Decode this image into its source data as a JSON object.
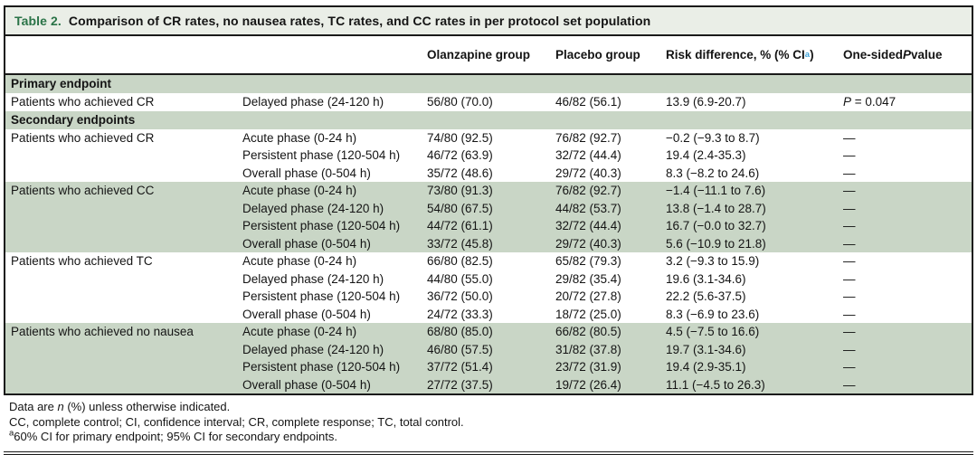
{
  "colors": {
    "band_green": "#c9d6c6",
    "caption_bg": "#eaeee7",
    "caption_label_green": "#2a7347",
    "superscript_blue": "#3fa3d9"
  },
  "caption": {
    "label": "Table 2.",
    "text": "Comparison of CR rates, no nausea rates, TC rates, and CC rates in per protocol set population"
  },
  "columns": {
    "olanzapine": "Olanzapine group",
    "placebo": "Placebo group",
    "risk": [
      {
        "t": "Risk difference, % (% CI"
      },
      {
        "t": "a",
        "sup": true,
        "blue": true
      },
      {
        "t": ")"
      }
    ],
    "pvalue": [
      {
        "t": "One-sided "
      },
      {
        "t": "P",
        "i": true
      },
      {
        "t": " value"
      }
    ]
  },
  "sections": [
    {
      "type": "band",
      "label": "Primary endpoint"
    },
    {
      "type": "group",
      "endpoint": "Patients who achieved CR",
      "shaded": false,
      "rows": [
        {
          "phase": "Delayed phase (24-120 h)",
          "olanzapine": "56/80 (70.0)",
          "placebo": "46/82 (56.1)",
          "risk": "13.9 (6.9-20.7)",
          "p": [
            {
              "t": "P",
              "i": true
            },
            {
              "t": " = 0.047"
            }
          ]
        }
      ]
    },
    {
      "type": "band",
      "label": "Secondary endpoints"
    },
    {
      "type": "group",
      "endpoint": "Patients who achieved CR",
      "shaded": false,
      "rows": [
        {
          "phase": "Acute phase (0-24 h)",
          "olanzapine": "74/80 (92.5)",
          "placebo": "76/82 (92.7)",
          "risk": "−0.2 (−9.3 to 8.7)",
          "p": "—"
        },
        {
          "phase": "Persistent phase (120-504 h)",
          "olanzapine": "46/72 (63.9)",
          "placebo": "32/72 (44.4)",
          "risk": "19.4 (2.4-35.3)",
          "p": "—"
        },
        {
          "phase": "Overall phase (0-504 h)",
          "olanzapine": "35/72 (48.6)",
          "placebo": "29/72 (40.3)",
          "risk": "8.3 (−8.2 to 24.6)",
          "p": "—"
        }
      ]
    },
    {
      "type": "group",
      "endpoint": "Patients who achieved CC",
      "shaded": true,
      "rows": [
        {
          "phase": "Acute phase (0-24 h)",
          "olanzapine": "73/80 (91.3)",
          "placebo": "76/82 (92.7)",
          "risk": "−1.4 (−11.1 to 7.6)",
          "p": "—"
        },
        {
          "phase": "Delayed phase (24-120 h)",
          "olanzapine": "54/80 (67.5)",
          "placebo": "44/82 (53.7)",
          "risk": "13.8 (−1.4 to 28.7)",
          "p": "—"
        },
        {
          "phase": "Persistent phase (120-504 h)",
          "olanzapine": "44/72 (61.1)",
          "placebo": "32/72 (44.4)",
          "risk": "16.7 (−0.0 to 32.7)",
          "p": "—"
        },
        {
          "phase": "Overall phase (0-504 h)",
          "olanzapine": "33/72 (45.8)",
          "placebo": "29/72 (40.3)",
          "risk": "5.6 (−10.9 to 21.8)",
          "p": "—"
        }
      ]
    },
    {
      "type": "group",
      "endpoint": "Patients who achieved TC",
      "shaded": false,
      "rows": [
        {
          "phase": "Acute phase (0-24 h)",
          "olanzapine": "66/80 (82.5)",
          "placebo": "65/82 (79.3)",
          "risk": "3.2 (−9.3 to 15.9)",
          "p": "—"
        },
        {
          "phase": "Delayed phase (24-120 h)",
          "olanzapine": "44/80 (55.0)",
          "placebo": "29/82 (35.4)",
          "risk": "19.6 (3.1-34.6)",
          "p": "—"
        },
        {
          "phase": "Persistent phase (120-504 h)",
          "olanzapine": "36/72 (50.0)",
          "placebo": "20/72 (27.8)",
          "risk": "22.2 (5.6-37.5)",
          "p": "—"
        },
        {
          "phase": "Overall phase (0-504 h)",
          "olanzapine": "24/72 (33.3)",
          "placebo": "18/72 (25.0)",
          "risk": "8.3 (−6.9 to 23.6)",
          "p": "—"
        }
      ]
    },
    {
      "type": "group",
      "endpoint": "Patients who achieved no nausea",
      "shaded": true,
      "rows": [
        {
          "phase": "Acute phase (0-24 h)",
          "olanzapine": "68/80 (85.0)",
          "placebo": "66/82 (80.5)",
          "risk": "4.5 (−7.5 to 16.6)",
          "p": "—"
        },
        {
          "phase": "Delayed phase (24-120 h)",
          "olanzapine": "46/80 (57.5)",
          "placebo": "31/82 (37.8)",
          "risk": "19.7 (3.1-34.6)",
          "p": "—"
        },
        {
          "phase": "Persistent phase (120-504 h)",
          "olanzapine": "37/72 (51.4)",
          "placebo": "23/72 (31.9)",
          "risk": "19.4 (2.9-35.1)",
          "p": "—"
        },
        {
          "phase": "Overall phase (0-504 h)",
          "olanzapine": "27/72 (37.5)",
          "placebo": "19/72 (26.4)",
          "risk": "11.1 (−4.5 to 26.3)",
          "p": "—"
        }
      ]
    }
  ],
  "footnotes": [
    [
      {
        "t": "Data are "
      },
      {
        "t": "n",
        "i": true
      },
      {
        "t": " (%) unless otherwise indicated."
      }
    ],
    [
      {
        "t": "CC, complete control; CI, confidence interval; CR, complete response; TC, total control."
      }
    ],
    [
      {
        "t": "a",
        "sup": true
      },
      {
        "t": "60% CI for primary endpoint; 95% CI for secondary endpoints."
      }
    ]
  ]
}
